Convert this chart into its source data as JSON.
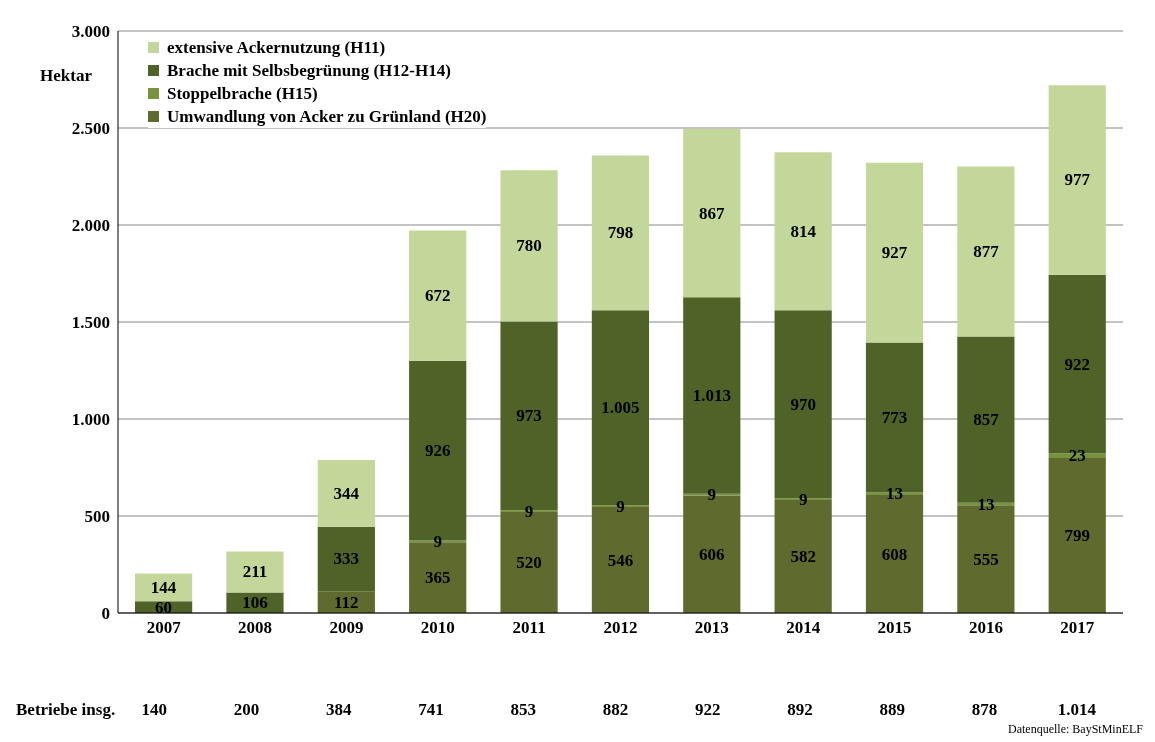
{
  "chart_data": {
    "type": "bar",
    "stacked": true,
    "ylabel": "Hektar",
    "categories": [
      "2007",
      "2008",
      "2009",
      "2010",
      "2011",
      "2012",
      "2013",
      "2014",
      "2015",
      "2016",
      "2017"
    ],
    "series": [
      {
        "name": "Umwandlung von Acker zu Grünland (H20)",
        "color": "#5f6b2e",
        "values": [
          null,
          null,
          112,
          365,
          520,
          546,
          606,
          582,
          608,
          555,
          799
        ],
        "value_labels": [
          null,
          null,
          "112",
          "365",
          "520",
          "546",
          "606",
          "582",
          "608",
          "555",
          "799"
        ]
      },
      {
        "name": "Stoppelbrache (H15)",
        "color": "#77933c",
        "values": [
          null,
          null,
          null,
          9,
          9,
          9,
          9,
          9,
          13,
          13,
          23
        ],
        "value_labels": [
          null,
          null,
          null,
          "9",
          "9",
          "9",
          "9",
          "9",
          "13",
          "13",
          "23"
        ]
      },
      {
        "name": "Brache mit Selbsbegrünung (H12-H14)",
        "color": "#4f6228",
        "values": [
          60,
          106,
          333,
          926,
          973,
          1005,
          1013,
          970,
          773,
          857,
          922
        ],
        "value_labels": [
          "60",
          "106",
          "333",
          "926",
          "973",
          "1.005",
          "1.013",
          "970",
          "773",
          "857",
          "922"
        ]
      },
      {
        "name": "extensive Ackernutzung (H11)",
        "color": "#c4d79b",
        "values": [
          144,
          211,
          344,
          672,
          780,
          798,
          867,
          814,
          927,
          877,
          977
        ],
        "value_labels": [
          "144",
          "211",
          "344",
          "672",
          "780",
          "798",
          "867",
          "814",
          "927",
          "877",
          "977"
        ]
      }
    ],
    "ylim": [
      0,
      3000
    ],
    "yticks": [
      {
        "value": 0,
        "label": "0"
      },
      {
        "value": 500,
        "label": "500"
      },
      {
        "value": 1000,
        "label": "1.000"
      },
      {
        "value": 1500,
        "label": "1.500"
      },
      {
        "value": 2000,
        "label": "2.000"
      },
      {
        "value": 2500,
        "label": "2.500"
      },
      {
        "value": 3000,
        "label": "3.000"
      }
    ],
    "grid": "y",
    "legend": "top left",
    "annotations": [
      "Betriebe insg.",
      "140",
      "200",
      "384",
      "741",
      "853",
      "882",
      "922",
      "892",
      "889",
      "878",
      "1.014",
      "Datenquelle: BayStMinELF"
    ]
  }
}
